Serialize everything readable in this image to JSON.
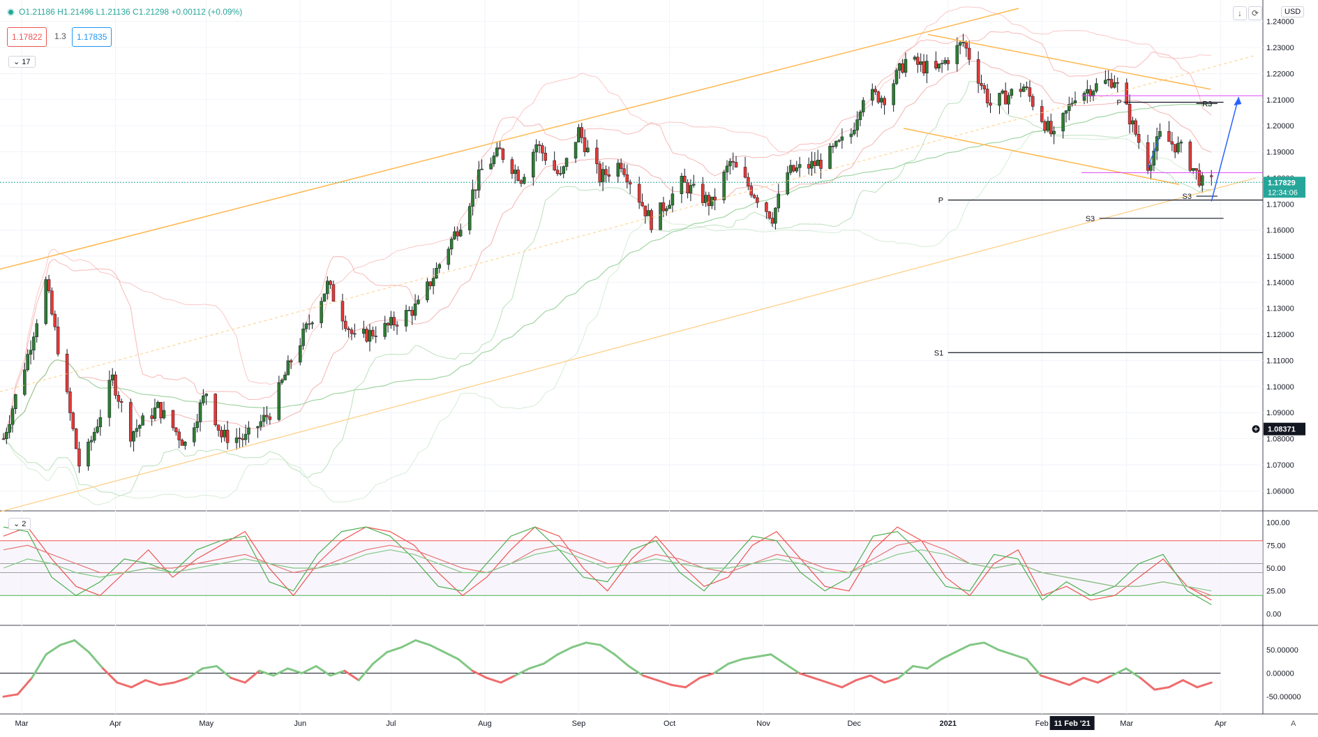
{
  "header": {
    "ohlc_text": "O1.21186  H1.21496  L1.21136  C1.21298  +0.00112 (+0.09%)",
    "sell_price": "1.17822",
    "spread": "1.3",
    "buy_price": "1.17835",
    "indicator_count": "17",
    "currency": "USD",
    "arrow_icon": "arrow-down-icon",
    "refresh_icon": "refresh-icon"
  },
  "price_labels": {
    "last_price": "1.17829",
    "countdown": "12:34:06",
    "crosshair_price": "1.08371",
    "last_color": "#26a69a"
  },
  "pivot_labels": {
    "p_left": "P",
    "s1": "S1",
    "s3_upper": "S3",
    "s3_lower": "S3",
    "p_upper": "P",
    "r3": "R3"
  },
  "stoch_pane": {
    "count": "2"
  },
  "time_axis": {
    "labels": [
      "Mar",
      "Apr",
      "May",
      "Jun",
      "Jul",
      "Aug",
      "Sep",
      "Oct",
      "Nov",
      "Dec",
      "2021",
      "Feb",
      "Mar",
      "Apr"
    ],
    "highlight": "11 Feb '21",
    "auto_label": "A"
  },
  "chart_data": [
    {
      "type": "candlestick",
      "title": "",
      "y_ticks": [
        "1.24000",
        "1.23000",
        "1.22000",
        "1.21000",
        "1.20000",
        "1.19000",
        "1.18000",
        "1.17000",
        "1.16000",
        "1.15000",
        "1.14000",
        "1.13000",
        "1.12000",
        "1.11000",
        "1.10000",
        "1.09000",
        "1.08000",
        "1.07000",
        "1.06000"
      ],
      "ylim": [
        1.055,
        1.245
      ],
      "x_range": [
        "2020-02-24",
        "2021-04-15"
      ],
      "price_path": [
        [
          "2020-02-24",
          1.08
        ],
        [
          "2020-03-03",
          1.112
        ],
        [
          "2020-03-09",
          1.14
        ],
        [
          "2020-03-13",
          1.115
        ],
        [
          "2020-03-20",
          1.07
        ],
        [
          "2020-03-23",
          1.076
        ],
        [
          "2020-03-31",
          1.103
        ],
        [
          "2020-04-06",
          1.082
        ],
        [
          "2020-04-15",
          1.092
        ],
        [
          "2020-04-24",
          1.078
        ],
        [
          "2020-05-01",
          1.098
        ],
        [
          "2020-05-06",
          1.081
        ],
        [
          "2020-05-14",
          1.08
        ],
        [
          "2020-05-22",
          1.09
        ],
        [
          "2020-05-29",
          1.11
        ],
        [
          "2020-06-10",
          1.139
        ],
        [
          "2020-06-19",
          1.118
        ],
        [
          "2020-06-30",
          1.123
        ],
        [
          "2020-07-10",
          1.131
        ],
        [
          "2020-07-24",
          1.163
        ],
        [
          "2020-07-31",
          1.183
        ],
        [
          "2020-08-06",
          1.19
        ],
        [
          "2020-08-13",
          1.18
        ],
        [
          "2020-08-18",
          1.193
        ],
        [
          "2020-08-26",
          1.18
        ],
        [
          "2020-09-01",
          1.198
        ],
        [
          "2020-09-08",
          1.18
        ],
        [
          "2020-09-15",
          1.186
        ],
        [
          "2020-09-25",
          1.163
        ],
        [
          "2020-10-05",
          1.178
        ],
        [
          "2020-10-15",
          1.17
        ],
        [
          "2020-10-21",
          1.186
        ],
        [
          "2020-11-04",
          1.165
        ],
        [
          "2020-11-09",
          1.182
        ],
        [
          "2020-11-20",
          1.186
        ],
        [
          "2020-11-30",
          1.197
        ],
        [
          "2020-12-04",
          1.212
        ],
        [
          "2020-12-11",
          1.211
        ],
        [
          "2020-12-18",
          1.225
        ],
        [
          "2020-12-28",
          1.221
        ],
        [
          "2021-01-06",
          1.232
        ],
        [
          "2021-01-15",
          1.208
        ],
        [
          "2021-01-26",
          1.215
        ],
        [
          "2021-02-05",
          1.195
        ],
        [
          "2021-02-12",
          1.212
        ],
        [
          "2021-02-25",
          1.218
        ],
        [
          "2021-03-08",
          1.185
        ],
        [
          "2021-03-12",
          1.196
        ],
        [
          "2021-03-19",
          1.191
        ],
        [
          "2021-03-26",
          1.178
        ],
        [
          "2021-03-29",
          1.178
        ]
      ],
      "annotations": [
        {
          "label": "P",
          "value": 1.1715,
          "from": "2021-01-01",
          "to": "2021-04-15",
          "color": "#131722"
        },
        {
          "label": "S1",
          "value": 1.113,
          "from": "2021-01-01",
          "to": "2021-04-15",
          "color": "#131722"
        },
        {
          "label": "S3",
          "value": 1.1645,
          "from": "2021-02-20",
          "to": "2021-04-02",
          "color": "#131722"
        },
        {
          "label": "S3",
          "value": 1.173,
          "from": "2021-03-24",
          "to": "2021-03-31",
          "color": "#131722"
        },
        {
          "label": "P",
          "value": 1.209,
          "from": "2021-02-28",
          "to": "2021-04-02",
          "color": "#131722"
        },
        {
          "label": "R3",
          "value": 1.2085,
          "from": "2021-03-24",
          "to": "2021-03-31",
          "color": "#131722"
        }
      ],
      "magenta_levels": [
        1.2115,
        1.182
      ],
      "projection": [
        [
          "2021-03-29",
          1.171
        ],
        [
          "2021-04-07",
          1.211
        ]
      ],
      "grid": true
    },
    {
      "type": "line",
      "title": "",
      "y_ticks": [
        "100.00",
        "75.00",
        "50.00",
        "25.00",
        "0.00"
      ],
      "ylim": [
        -5,
        105
      ],
      "levels": [
        80,
        20
      ],
      "series": [
        {
          "color": "#ef5350",
          "values": [
            85,
            95,
            60,
            30,
            20,
            45,
            70,
            40,
            60,
            75,
            90,
            50,
            20,
            55,
            80,
            95,
            90,
            75,
            45,
            20,
            40,
            70,
            95,
            85,
            50,
            25,
            60,
            85,
            55,
            30,
            40,
            75,
            90,
            60,
            30,
            25,
            70,
            95,
            80,
            40,
            20,
            55,
            70,
            20,
            30,
            15,
            20,
            40,
            60,
            30,
            15
          ]
        },
        {
          "color": "#4caf50",
          "values": [
            95,
            90,
            40,
            20,
            35,
            60,
            55,
            45,
            70,
            80,
            85,
            35,
            25,
            65,
            90,
            95,
            85,
            60,
            30,
            25,
            55,
            85,
            95,
            70,
            40,
            35,
            70,
            80,
            45,
            25,
            55,
            85,
            80,
            45,
            25,
            40,
            85,
            90,
            65,
            30,
            25,
            65,
            60,
            15,
            35,
            20,
            30,
            55,
            65,
            25,
            10
          ]
        },
        {
          "color": "#e57373",
          "values": [
            70,
            75,
            65,
            55,
            45,
            45,
            50,
            50,
            55,
            60,
            65,
            55,
            45,
            50,
            60,
            70,
            75,
            70,
            60,
            50,
            45,
            55,
            70,
            75,
            65,
            55,
            55,
            65,
            60,
            50,
            45,
            55,
            65,
            60,
            50,
            45,
            60,
            75,
            80,
            70,
            55,
            50,
            55,
            45,
            40,
            35,
            30,
            30,
            35,
            30,
            20
          ]
        },
        {
          "color": "#81c784",
          "values": [
            50,
            60,
            55,
            45,
            40,
            45,
            50,
            45,
            50,
            55,
            60,
            55,
            50,
            50,
            55,
            65,
            70,
            65,
            55,
            45,
            45,
            55,
            65,
            70,
            60,
            50,
            55,
            60,
            55,
            50,
            50,
            55,
            60,
            55,
            45,
            45,
            55,
            65,
            70,
            65,
            55,
            50,
            55,
            45,
            40,
            35,
            30,
            30,
            35,
            30,
            25
          ]
        }
      ]
    },
    {
      "type": "area",
      "title": "",
      "y_ticks": [
        "50.00000",
        "0.00000",
        "-50.00000"
      ],
      "ylim": [
        -75,
        90
      ],
      "zero_line": 0,
      "values": [
        -50,
        -45,
        -10,
        40,
        60,
        70,
        45,
        10,
        -20,
        -30,
        -15,
        -25,
        -20,
        -10,
        10,
        15,
        -10,
        -20,
        5,
        -5,
        10,
        0,
        15,
        -5,
        5,
        -15,
        20,
        45,
        55,
        70,
        60,
        45,
        30,
        5,
        -10,
        -20,
        -5,
        10,
        20,
        40,
        55,
        65,
        60,
        40,
        15,
        -5,
        -15,
        -25,
        -30,
        -10,
        0,
        20,
        30,
        35,
        40,
        20,
        0,
        -10,
        -20,
        -30,
        -15,
        -5,
        -20,
        -10,
        15,
        10,
        30,
        45,
        60,
        65,
        50,
        40,
        30,
        -5,
        -15,
        -25,
        -10,
        -20,
        -5,
        10,
        -10,
        -35,
        -30,
        -15,
        -30,
        -20
      ]
    }
  ]
}
